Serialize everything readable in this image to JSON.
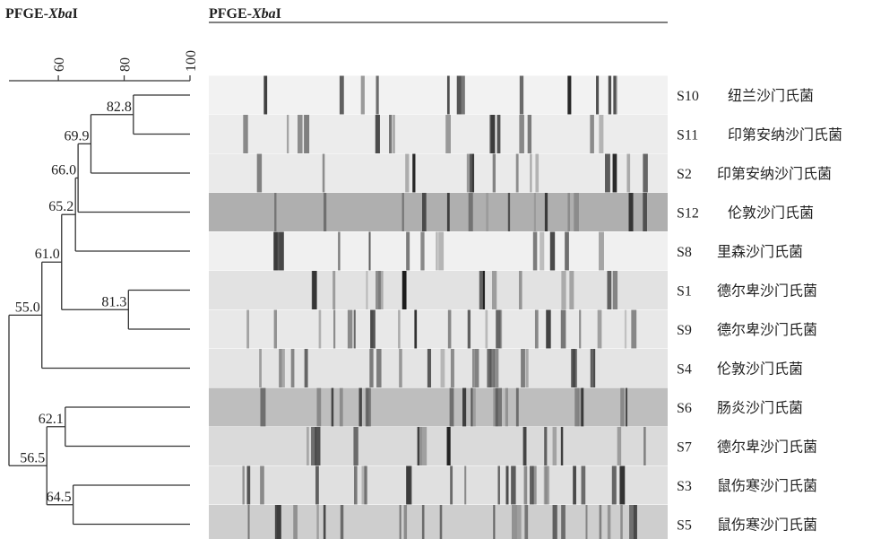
{
  "chart_data": {
    "type": "dendrogram",
    "title_parts": [
      "PFGE-",
      "Xba",
      "I"
    ],
    "gel_title_parts": [
      "PFGE-",
      "Xba",
      "I"
    ],
    "xlim": [
      45,
      100
    ],
    "xticks": [
      60,
      80,
      100
    ],
    "tree": {
      "children": [
        {
          "value": 55.0,
          "label": "55.0",
          "children": [
            {
              "value": 61.0,
              "label": "61.0",
              "children": [
                {
                  "value": 65.2,
                  "label": "65.2",
                  "children": [
                    {
                      "value": 66.0,
                      "label": "66.0",
                      "children": [
                        {
                          "value": 69.9,
                          "label": "69.9",
                          "children": [
                            {
                              "value": 82.8,
                              "label": "82.8",
                              "children": [
                                {
                                  "id": "S10",
                                  "name": "纽兰沙门氏菌"
                                },
                                {
                                  "id": "S11",
                                  "name": "印第安纳沙门氏菌"
                                }
                              ]
                            },
                            {
                              "id": "S2",
                              "name": "印第安纳沙门氏菌"
                            }
                          ]
                        },
                        {
                          "id": "S12",
                          "name": "伦敦沙门氏菌"
                        }
                      ]
                    },
                    {
                      "id": "S8",
                      "name": "里森沙门氏菌"
                    }
                  ]
                },
                {
                  "value": 81.3,
                  "label": "81.3",
                  "children": [
                    {
                      "id": "S1",
                      "name": "德尔卑沙门氏菌"
                    },
                    {
                      "id": "S9",
                      "name": "德尔卑沙门氏菌"
                    }
                  ]
                }
              ]
            },
            {
              "id": "S4",
              "name": "伦敦沙门氏菌"
            }
          ]
        },
        {
          "value": 56.5,
          "label": "56.5",
          "children": [
            {
              "value": 62.1,
              "label": "62.1",
              "children": [
                {
                  "id": "S6",
                  "name": "肠炎沙门氏菌"
                },
                {
                  "id": "S7",
                  "name": "德尔卑沙门氏菌"
                }
              ]
            },
            {
              "value": 64.5,
              "label": "64.5",
              "children": [
                {
                  "id": "S3",
                  "name": "鼠伤寒沙门氏菌"
                },
                {
                  "id": "S5",
                  "name": "鼠伤寒沙门氏菌"
                }
              ]
            }
          ]
        }
      ]
    }
  }
}
